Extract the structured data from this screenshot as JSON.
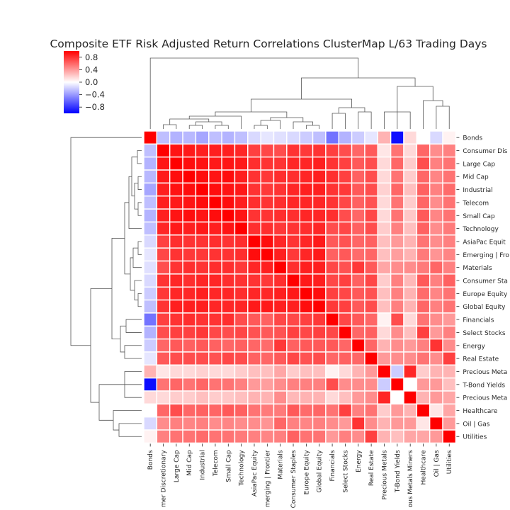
{
  "chart_data": {
    "type": "heatmap",
    "title": "Composite ETF Risk Adjusted Return Correlations ClusterMap L/63 Trading Days",
    "colorbar": {
      "vmin": -1,
      "vmax": 1,
      "ticks": [
        -0.8,
        -0.4,
        0.0,
        0.4,
        0.8
      ],
      "tick_labels": [
        "−0.8",
        "−0.4",
        "0.0",
        "0.4",
        "0.8"
      ],
      "colors": [
        "#0000ff",
        "#ffffff",
        "#ff0000"
      ]
    },
    "row_labels": [
      "Bonds",
      "Consumer Discretionary",
      "Large Cap",
      "Mid Cap",
      "Industrial",
      "Telecom",
      "Small Cap",
      "Technology",
      "AsiaPac Equity",
      "Emerging | Frontier",
      "Materials",
      "Consumer Staples",
      "Europe Equity",
      "Global Equity",
      "Financials",
      "Select Stocks",
      "Energy",
      "Real Estate",
      "Precious Metals",
      "T-Bond Yields",
      "Precious Metals Miners",
      "Healthcare",
      "Oil | Gas",
      "Utilities"
    ],
    "row_labels_shown": [
      "Bonds",
      "Consumer Dis",
      "Large Cap",
      "Mid Cap",
      "Industrial",
      "Telecom",
      "Small Cap",
      "Technology",
      "AsiaPac Equit",
      "Emerging | Fro",
      "Materials",
      "Consumer Sta",
      "Europe Equity",
      "Global Equity",
      "Financials",
      "Select Stocks",
      "Energy",
      "Real Estate",
      "Precious Meta",
      "T-Bond Yields",
      "Precious Meta",
      "Healthcare",
      "Oil | Gas",
      "Utilities"
    ],
    "col_labels_shown": [
      "Bonds",
      "mer Discretionary",
      "Large Cap",
      "Mid Cap",
      "Industrial",
      "Telecom",
      "Small Cap",
      "Technology",
      "AsiaPac Equity",
      "merging | Frontier",
      "Materials",
      "Consumer Staples",
      "Europe Equity",
      "Global Equity",
      "Financials",
      "Select Stocks",
      "Energy",
      "Real Estate",
      "Precious Metals",
      "T-Bond Yields",
      "ous Metals Miners",
      "Healthcare",
      "Oil | Gas",
      "Utilities"
    ],
    "values": [
      [
        1.0,
        -0.25,
        -0.3,
        -0.28,
        -0.35,
        -0.25,
        -0.3,
        -0.25,
        -0.15,
        -0.1,
        -0.12,
        -0.15,
        -0.2,
        -0.25,
        -0.55,
        -0.3,
        -0.2,
        -0.1,
        0.3,
        -0.95,
        0.15,
        0.0,
        -0.15,
        0.05
      ],
      [
        -0.25,
        1.0,
        0.92,
        0.9,
        0.88,
        0.88,
        0.88,
        0.85,
        0.75,
        0.72,
        0.7,
        0.8,
        0.78,
        0.8,
        0.75,
        0.7,
        0.6,
        0.65,
        0.1,
        0.55,
        0.15,
        0.6,
        0.45,
        0.5
      ],
      [
        -0.3,
        0.92,
        1.0,
        0.95,
        0.93,
        0.9,
        0.92,
        0.9,
        0.82,
        0.8,
        0.8,
        0.85,
        0.85,
        0.88,
        0.8,
        0.75,
        0.65,
        0.7,
        0.15,
        0.6,
        0.2,
        0.7,
        0.5,
        0.55
      ],
      [
        -0.28,
        0.9,
        0.95,
        1.0,
        0.95,
        0.92,
        0.95,
        0.88,
        0.8,
        0.78,
        0.82,
        0.82,
        0.85,
        0.88,
        0.82,
        0.75,
        0.62,
        0.7,
        0.15,
        0.55,
        0.2,
        0.6,
        0.48,
        0.55
      ],
      [
        -0.35,
        0.88,
        0.93,
        0.95,
        1.0,
        0.95,
        0.92,
        0.9,
        0.8,
        0.78,
        0.8,
        0.85,
        0.88,
        0.88,
        0.8,
        0.78,
        0.65,
        0.7,
        0.18,
        0.6,
        0.25,
        0.62,
        0.5,
        0.58
      ],
      [
        -0.25,
        0.88,
        0.9,
        0.92,
        0.95,
        1.0,
        0.95,
        0.88,
        0.82,
        0.8,
        0.82,
        0.85,
        0.85,
        0.85,
        0.8,
        0.72,
        0.62,
        0.68,
        0.15,
        0.55,
        0.2,
        0.6,
        0.45,
        0.55
      ],
      [
        -0.3,
        0.88,
        0.92,
        0.95,
        0.92,
        0.95,
        1.0,
        0.92,
        0.8,
        0.8,
        0.82,
        0.82,
        0.85,
        0.85,
        0.82,
        0.7,
        0.6,
        0.72,
        0.15,
        0.55,
        0.22,
        0.65,
        0.48,
        0.55
      ],
      [
        -0.25,
        0.85,
        0.9,
        0.88,
        0.9,
        0.88,
        0.92,
        1.0,
        0.82,
        0.82,
        0.78,
        0.8,
        0.82,
        0.85,
        0.7,
        0.72,
        0.62,
        0.7,
        0.2,
        0.5,
        0.25,
        0.62,
        0.45,
        0.52
      ],
      [
        -0.15,
        0.75,
        0.82,
        0.8,
        0.8,
        0.82,
        0.8,
        0.82,
        1.0,
        0.95,
        0.85,
        0.8,
        0.85,
        0.9,
        0.65,
        0.68,
        0.6,
        0.62,
        0.25,
        0.4,
        0.3,
        0.55,
        0.45,
        0.5
      ],
      [
        -0.1,
        0.72,
        0.8,
        0.78,
        0.78,
        0.8,
        0.8,
        0.82,
        0.95,
        1.0,
        0.88,
        0.78,
        0.85,
        0.9,
        0.62,
        0.65,
        0.58,
        0.6,
        0.25,
        0.38,
        0.3,
        0.52,
        0.42,
        0.48
      ],
      [
        -0.12,
        0.7,
        0.8,
        0.82,
        0.8,
        0.82,
        0.82,
        0.78,
        0.85,
        0.88,
        1.0,
        0.82,
        0.88,
        0.88,
        0.72,
        0.68,
        0.78,
        0.65,
        0.35,
        0.45,
        0.45,
        0.52,
        0.6,
        0.5
      ],
      [
        -0.15,
        0.8,
        0.85,
        0.82,
        0.85,
        0.85,
        0.82,
        0.8,
        0.8,
        0.78,
        0.82,
        1.0,
        0.9,
        0.88,
        0.72,
        0.75,
        0.62,
        0.72,
        0.2,
        0.5,
        0.28,
        0.65,
        0.5,
        0.62
      ],
      [
        -0.2,
        0.78,
        0.85,
        0.85,
        0.88,
        0.85,
        0.85,
        0.82,
        0.85,
        0.85,
        0.88,
        0.9,
        1.0,
        0.95,
        0.75,
        0.72,
        0.65,
        0.68,
        0.25,
        0.5,
        0.3,
        0.58,
        0.48,
        0.55
      ],
      [
        -0.25,
        0.8,
        0.88,
        0.88,
        0.88,
        0.85,
        0.85,
        0.85,
        0.9,
        0.9,
        0.88,
        0.88,
        0.95,
        1.0,
        0.78,
        0.75,
        0.65,
        0.7,
        0.25,
        0.5,
        0.3,
        0.6,
        0.5,
        0.55
      ],
      [
        -0.55,
        0.75,
        0.8,
        0.82,
        0.8,
        0.8,
        0.82,
        0.7,
        0.65,
        0.62,
        0.72,
        0.72,
        0.75,
        0.78,
        1.0,
        0.72,
        0.65,
        0.6,
        0.05,
        0.7,
        0.15,
        0.55,
        0.45,
        0.4
      ],
      [
        -0.3,
        0.7,
        0.75,
        0.75,
        0.78,
        0.72,
        0.7,
        0.72,
        0.68,
        0.65,
        0.68,
        0.75,
        0.72,
        0.75,
        0.72,
        1.0,
        0.6,
        0.62,
        0.15,
        0.45,
        0.25,
        0.75,
        0.4,
        0.5
      ],
      [
        -0.2,
        0.6,
        0.65,
        0.62,
        0.65,
        0.62,
        0.6,
        0.62,
        0.6,
        0.58,
        0.78,
        0.62,
        0.65,
        0.65,
        0.65,
        0.6,
        1.0,
        0.6,
        0.3,
        0.45,
        0.4,
        0.5,
        0.8,
        0.45
      ],
      [
        -0.1,
        0.65,
        0.7,
        0.7,
        0.7,
        0.68,
        0.72,
        0.7,
        0.62,
        0.6,
        0.65,
        0.72,
        0.68,
        0.7,
        0.6,
        0.62,
        0.6,
        1.0,
        0.4,
        0.45,
        0.45,
        0.55,
        0.45,
        0.75
      ],
      [
        0.3,
        0.1,
        0.15,
        0.15,
        0.18,
        0.15,
        0.15,
        0.2,
        0.25,
        0.25,
        0.35,
        0.2,
        0.25,
        0.25,
        0.05,
        0.15,
        0.3,
        0.4,
        1.0,
        -0.2,
        0.85,
        0.2,
        0.3,
        0.3
      ],
      [
        -0.95,
        0.55,
        0.6,
        0.55,
        0.6,
        0.55,
        0.55,
        0.5,
        0.4,
        0.38,
        0.45,
        0.5,
        0.5,
        0.5,
        0.7,
        0.45,
        0.45,
        0.45,
        -0.2,
        1.0,
        0.0,
        0.4,
        0.4,
        0.25
      ],
      [
        0.15,
        0.15,
        0.2,
        0.2,
        0.25,
        0.2,
        0.22,
        0.25,
        0.3,
        0.3,
        0.45,
        0.28,
        0.3,
        0.3,
        0.15,
        0.25,
        0.4,
        0.45,
        0.85,
        0.0,
        1.0,
        0.3,
        0.4,
        0.35
      ],
      [
        0.0,
        0.6,
        0.7,
        0.6,
        0.62,
        0.6,
        0.65,
        0.62,
        0.55,
        0.52,
        0.52,
        0.65,
        0.58,
        0.6,
        0.55,
        0.75,
        0.5,
        0.55,
        0.2,
        0.4,
        0.3,
        1.0,
        0.1,
        0.35
      ],
      [
        -0.15,
        0.45,
        0.5,
        0.48,
        0.5,
        0.45,
        0.48,
        0.45,
        0.45,
        0.42,
        0.6,
        0.5,
        0.48,
        0.5,
        0.45,
        0.4,
        0.8,
        0.45,
        0.3,
        0.4,
        0.4,
        0.1,
        1.0,
        0.4
      ],
      [
        0.05,
        0.5,
        0.55,
        0.55,
        0.58,
        0.55,
        0.55,
        0.52,
        0.5,
        0.48,
        0.5,
        0.62,
        0.55,
        0.55,
        0.4,
        0.5,
        0.45,
        0.75,
        0.3,
        0.25,
        0.35,
        0.35,
        0.4,
        1.0
      ]
    ]
  }
}
